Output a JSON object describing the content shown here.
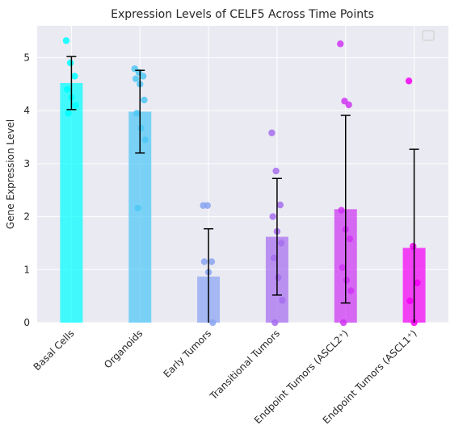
{
  "chart_data": {
    "type": "bar",
    "title": "Expression Levels of CELF5 Across Time Points",
    "xlabel": "",
    "ylabel": "Gene Expression Level",
    "ylim": [
      0,
      5.6
    ],
    "yticks": [
      "0",
      "1",
      "2",
      "3",
      "4",
      "5"
    ],
    "grid": true,
    "legend": "top-right (empty)",
    "categories": [
      "Basal Cells",
      "Organoids",
      "Early Tumors",
      "Transitional Tumors",
      "Endpoint Tumors (ASCL2⁺)",
      "Endpoint Tumors (ASCL1⁺)"
    ],
    "values": [
      4.52,
      3.98,
      0.87,
      1.62,
      2.14,
      1.41
    ],
    "errors": [
      0.5,
      0.78,
      0.9,
      1.1,
      1.77,
      1.86
    ],
    "colors": [
      "#00ffff",
      "#4fc8f6",
      "#8aa5f2",
      "#a66dee",
      "#cf35f2",
      "#f500f5"
    ],
    "points": [
      [
        5.32,
        4.9,
        4.65,
        4.4,
        4.25,
        4.1,
        3.95
      ],
      [
        4.79,
        4.72,
        4.65,
        4.6,
        4.5,
        4.2,
        3.95,
        3.67,
        3.45,
        2.16
      ],
      [
        2.21,
        2.21,
        1.15,
        1.15,
        0.95,
        0.0
      ],
      [
        3.58,
        2.86,
        2.22,
        2.0,
        1.72,
        1.5,
        1.22,
        0.85,
        0.42,
        0.0
      ],
      [
        5.26,
        4.18,
        4.11,
        2.12,
        1.76,
        1.58,
        1.04,
        0.8,
        0.6,
        0.0
      ],
      [
        4.56,
        1.44,
        0.75,
        0.41,
        0.0
      ]
    ]
  }
}
